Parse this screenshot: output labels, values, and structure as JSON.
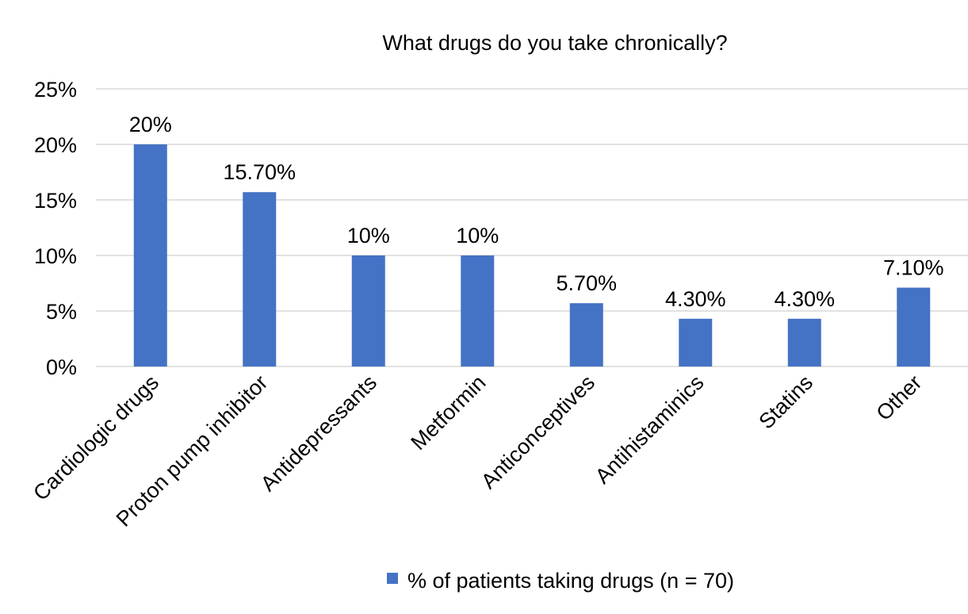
{
  "chart_data": {
    "type": "bar",
    "title": "What drugs do you take chronically?",
    "categories": [
      "Cardiologic drugs",
      "Proton pump inhibitor",
      "Antidepressants",
      "Metformin",
      "Anticonceptives",
      "Antihistaminics",
      "Statins",
      "Other"
    ],
    "series": [
      {
        "name": "% of patients taking drugs (n = 70)",
        "values": [
          20,
          15.7,
          10,
          10,
          5.7,
          4.3,
          4.3,
          7.1
        ],
        "data_labels": [
          "20%",
          "15.70%",
          "10%",
          "10%",
          "5.70%",
          "4.30%",
          "4.30%",
          "7.10%"
        ],
        "color": "#4472c4"
      }
    ],
    "ylim": [
      0,
      25
    ],
    "yticks": [
      0,
      5,
      10,
      15,
      20,
      25
    ],
    "ytick_labels": [
      "0%",
      "5%",
      "10%",
      "15%",
      "20%",
      "25%"
    ],
    "xlabel": "",
    "ylabel": "",
    "grid": true,
    "legend_position": "bottom"
  }
}
